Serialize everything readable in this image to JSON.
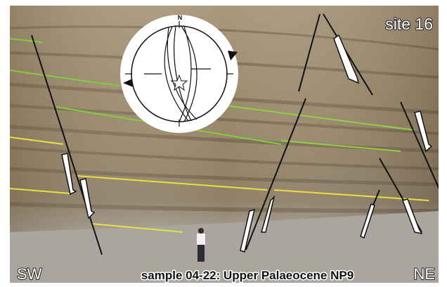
{
  "labels": {
    "site": "site 16",
    "left_direction": "SW",
    "right_direction": "NE",
    "caption": "sample 04-22: Upper Palaeocene NP9"
  },
  "stereonet": {
    "north_label": "N"
  }
}
